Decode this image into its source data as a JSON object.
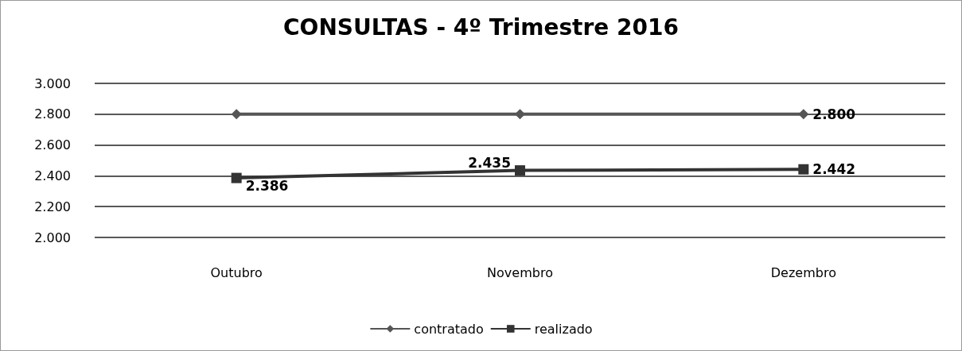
{
  "chart_data": {
    "type": "line",
    "title": "CONSULTAS - 4º Trimestre 2016",
    "categories": [
      "Outubro",
      "Novembro",
      "Dezembro"
    ],
    "series": [
      {
        "name": "contratado",
        "color": "#555555",
        "marker": "diamond",
        "values": [
          2800,
          2800,
          2800
        ],
        "value_labels": [
          null,
          null,
          "2.800"
        ]
      },
      {
        "name": "realizado",
        "color": "#333333",
        "marker": "square",
        "values": [
          2386,
          2435,
          2442
        ],
        "value_labels": [
          "2.386",
          "2.435",
          "2.442"
        ]
      }
    ],
    "ylim": [
      2000,
      3000
    ],
    "yticks": [
      {
        "value": 2000,
        "label": "2.000"
      },
      {
        "value": 2200,
        "label": "2.200"
      },
      {
        "value": 2400,
        "label": "2.400"
      },
      {
        "value": 2600,
        "label": "2.600"
      },
      {
        "value": 2800,
        "label": "2.800"
      },
      {
        "value": 3000,
        "label": "3.000"
      }
    ],
    "grid": "y",
    "legend": "bottom",
    "line_style": "solid"
  }
}
